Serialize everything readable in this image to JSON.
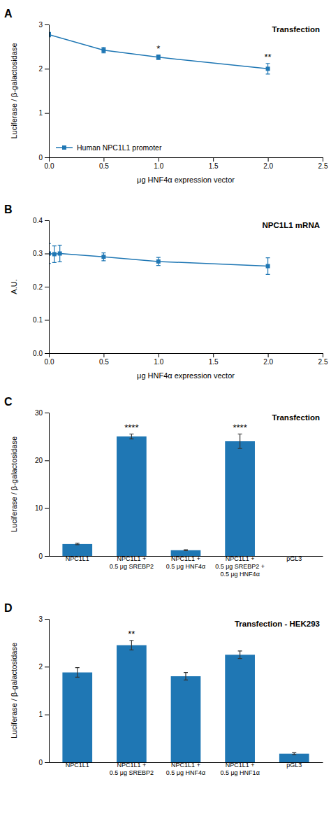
{
  "chart_data": [
    {
      "type": "line",
      "title": "Transfection",
      "xlabel": "μg HNF4α expression vector",
      "ylabel": "Luciferase / β-galactosidase",
      "x": [
        0,
        0.5,
        1,
        2
      ],
      "series": [
        {
          "name": "Human NPC1L1 promoter",
          "values": [
            2.77,
            2.42,
            2.26,
            2.0
          ],
          "yerr": [
            0.05,
            0.06,
            0.05,
            0.12
          ],
          "marker": "square",
          "line_style": "solid"
        }
      ],
      "xlim": [
        0,
        2.5
      ],
      "ylim": [
        0,
        3
      ],
      "xticks": [
        {
          "value": 0,
          "label": "0.0"
        },
        0.5,
        {
          "value": 1,
          "label": "1.0"
        },
        1.5,
        {
          "value": 2,
          "label": "2.0"
        },
        2.5
      ],
      "yticks": [
        0,
        1,
        2,
        3
      ],
      "legend": "lower-left",
      "grid": false,
      "annotations": [
        {
          "text": "A"
        },
        {
          "text": "*",
          "x": 1
        },
        {
          "text": "**",
          "x": 2
        }
      ]
    },
    {
      "type": "line",
      "title": "NPC1L1 mRNA",
      "xlabel": "μg HNF4α expression vector",
      "ylabel": "A.U.",
      "x": [
        0,
        0.05,
        0.1,
        0.5,
        1,
        2
      ],
      "values": [
        0.3,
        0.298,
        0.3,
        0.29,
        0.276,
        0.262
      ],
      "yerr": [
        0.03,
        0.025,
        0.025,
        0.012,
        0.012,
        0.025
      ],
      "marker": "square",
      "line_style": "solid",
      "xlim": [
        0,
        2.5
      ],
      "ylim": [
        0,
        0.4
      ],
      "xticks": [
        {
          "value": 0,
          "label": "0.0"
        },
        0.5,
        {
          "value": 1,
          "label": "1.0"
        },
        1.5,
        {
          "value": 2,
          "label": "2.0"
        },
        2.5
      ],
      "yticks": [
        {
          "value": 0,
          "label": "0.0"
        },
        0.1,
        0.2,
        0.3,
        0.4
      ],
      "grid": false,
      "annotations": [
        {
          "text": "B"
        }
      ]
    },
    {
      "type": "bar",
      "title": "Transfection",
      "ylabel": "Luciferase / β-galactosidase",
      "categories": [
        "NPC1L1",
        "NPC1L1 +\n0.5 μg SREBP2",
        "NPC1L1 +\n0.5 μg HNF4α",
        "NPC1L1 +\n0.5 μg SREBP2 +\n0.5 μg HNF4α",
        "pGL3"
      ],
      "values": [
        2.5,
        25.0,
        1.2,
        24.0,
        0.0
      ],
      "yerr": [
        0.15,
        0.5,
        0.1,
        1.5,
        0.0
      ],
      "ylim": [
        0,
        30
      ],
      "yticks": [
        0,
        10,
        20,
        30
      ],
      "grid": false,
      "annotations": [
        {
          "text": "C"
        },
        {
          "text": "****",
          "x": "NPC1L1 +\n0.5 μg SREBP2"
        },
        {
          "text": "****",
          "x": "NPC1L1 +\n0.5 μg SREBP2 +\n0.5 μg HNF4α"
        }
      ]
    },
    {
      "type": "bar",
      "title": "Transfection - HEK293",
      "ylabel": "Luciferase / β-galactosidase",
      "categories": [
        "NPC1L1",
        "NPC1L1 +\n0.5 μg SREBP2",
        "NPC1L1 +\n0.5 μg HNF4α",
        "NPC1L1 +\n0.5 μg HNF1α",
        "pGL3"
      ],
      "values": [
        1.88,
        2.45,
        1.8,
        2.25,
        0.18
      ],
      "yerr": [
        0.1,
        0.1,
        0.08,
        0.08,
        0.02
      ],
      "ylim": [
        0,
        3
      ],
      "yticks": [
        0,
        1,
        2,
        3
      ],
      "grid": false,
      "annotations": [
        {
          "text": "D"
        },
        {
          "text": "**",
          "x": "NPC1L1 +\n0.5 μg SREBP2"
        }
      ]
    }
  ]
}
